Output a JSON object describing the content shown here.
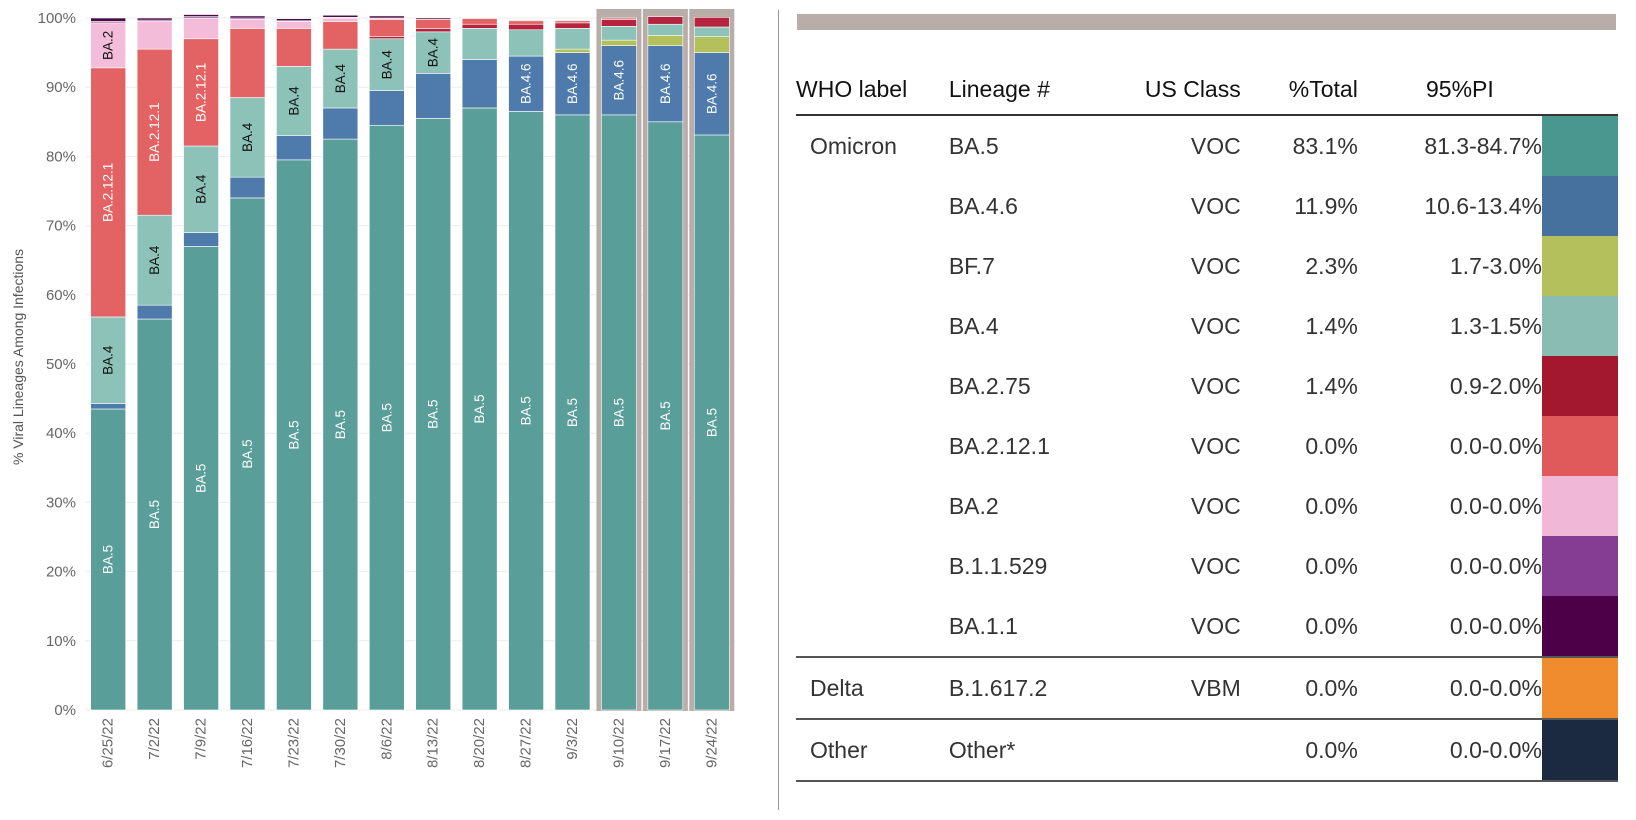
{
  "chart_data": {
    "type": "stacked-bar",
    "ylabel": "% Viral Lineages Among Infections",
    "ylim": [
      0,
      100
    ],
    "yticks": [
      "0%",
      "10%",
      "20%",
      "30%",
      "40%",
      "50%",
      "60%",
      "70%",
      "80%",
      "90%",
      "100%"
    ],
    "categories": [
      "6/25/22",
      "7/2/22",
      "7/9/22",
      "7/16/22",
      "7/23/22",
      "7/30/22",
      "8/6/22",
      "8/13/22",
      "8/20/22",
      "8/27/22",
      "9/3/22",
      "9/10/22",
      "9/17/22",
      "9/24/22"
    ],
    "nowcast_weeks": [
      "9/10/22",
      "9/17/22",
      "9/24/22"
    ],
    "series": [
      {
        "name": "BA.5",
        "color": "#5a9e9a",
        "values": [
          43.5,
          56.5,
          67,
          74,
          79.5,
          82.5,
          84.5,
          85.5,
          87,
          86.5,
          86,
          86,
          85,
          83.1
        ]
      },
      {
        "name": "BA.4.6",
        "color": "#4e7bab",
        "values": [
          0.8,
          2,
          2,
          3,
          3.5,
          4.5,
          5,
          6.5,
          7,
          8,
          9,
          10,
          11,
          11.9
        ]
      },
      {
        "name": "BF.7",
        "color": "#b3c05c",
        "values": [
          0,
          0,
          0,
          0,
          0,
          0,
          0,
          0,
          0,
          0,
          0.5,
          0.8,
          1.5,
          2.3
        ]
      },
      {
        "name": "BA.4",
        "color": "#8cc2b8",
        "values": [
          12.5,
          13,
          12.5,
          11.5,
          10,
          8.5,
          7.5,
          6,
          4.5,
          3.8,
          3,
          2,
          1.6,
          1.4
        ]
      },
      {
        "name": "BA.2.75",
        "color": "#b5233f",
        "values": [
          0,
          0,
          0,
          0,
          0,
          0,
          0.3,
          0.5,
          0.6,
          0.8,
          0.8,
          1,
          1.1,
          1.4
        ]
      },
      {
        "name": "BA.2.12.1",
        "color": "#e36364",
        "values": [
          36,
          24,
          15.5,
          10,
          5.5,
          4,
          2.5,
          1.3,
          0.8,
          0.5,
          0.3,
          0.2,
          0,
          0
        ]
      },
      {
        "name": "BA.2",
        "color": "#f3bcd9",
        "values": [
          6.5,
          4,
          3,
          1.3,
          1,
          0.5,
          0.2,
          0,
          0,
          0,
          0,
          0,
          0,
          0
        ]
      },
      {
        "name": "B.1.1.529",
        "color": "#8b4799",
        "values": [
          0.2,
          0.2,
          0.2,
          0.2,
          0.1,
          0.1,
          0,
          0,
          0,
          0,
          0,
          0,
          0,
          0
        ]
      },
      {
        "name": "BA.1.1",
        "color": "#4a0b45",
        "values": [
          0.5,
          0.3,
          0.3,
          0.3,
          0.3,
          0.3,
          0.3,
          0.2,
          0.1,
          0.1,
          0.1,
          0,
          0,
          0
        ]
      }
    ],
    "bar_labels": [
      {
        "bar": 0,
        "series": "BA.5",
        "text": "BA.5"
      },
      {
        "bar": 0,
        "series": "BA.4",
        "text": "BA.4"
      },
      {
        "bar": 0,
        "series": "BA.2.12.1",
        "text": "BA.2.12.1"
      },
      {
        "bar": 0,
        "series": "BA.2",
        "text": "BA.2"
      },
      {
        "bar": 1,
        "series": "BA.5",
        "text": "BA.5"
      },
      {
        "bar": 1,
        "series": "BA.4",
        "text": "BA.4"
      },
      {
        "bar": 1,
        "series": "BA.2.12.1",
        "text": "BA.2.12.1"
      },
      {
        "bar": 2,
        "series": "BA.5",
        "text": "BA.5"
      },
      {
        "bar": 2,
        "series": "BA.4",
        "text": "BA.4"
      },
      {
        "bar": 2,
        "series": "BA.2.12.1",
        "text": "BA.2.12.1"
      },
      {
        "bar": 3,
        "series": "BA.5",
        "text": "BA.5"
      },
      {
        "bar": 3,
        "series": "BA.4",
        "text": "BA.4"
      },
      {
        "bar": 4,
        "series": "BA.5",
        "text": "BA.5"
      },
      {
        "bar": 4,
        "series": "BA.4",
        "text": "BA.4"
      },
      {
        "bar": 5,
        "series": "BA.5",
        "text": "BA.5"
      },
      {
        "bar": 5,
        "series": "BA.4",
        "text": "BA.4"
      },
      {
        "bar": 6,
        "series": "BA.5",
        "text": "BA.5"
      },
      {
        "bar": 6,
        "series": "BA.4",
        "text": "BA.4"
      },
      {
        "bar": 7,
        "series": "BA.5",
        "text": "BA.5"
      },
      {
        "bar": 7,
        "series": "BA.4",
        "text": "BA.4"
      },
      {
        "bar": 8,
        "series": "BA.5",
        "text": "BA.5"
      },
      {
        "bar": 9,
        "series": "BA.5",
        "text": "BA.5"
      },
      {
        "bar": 9,
        "series": "BA.4.6",
        "text": "BA.4.6"
      },
      {
        "bar": 10,
        "series": "BA.5",
        "text": "BA.5"
      },
      {
        "bar": 10,
        "series": "BA.4.6",
        "text": "BA.4.6"
      },
      {
        "bar": 11,
        "series": "BA.5",
        "text": "BA.5"
      },
      {
        "bar": 11,
        "series": "BA.4.6",
        "text": "BA.4.6"
      },
      {
        "bar": 12,
        "series": "BA.5",
        "text": "BA.5"
      },
      {
        "bar": 12,
        "series": "BA.4.6",
        "text": "BA.4.6"
      },
      {
        "bar": 13,
        "series": "BA.5",
        "text": "BA.5"
      },
      {
        "bar": 13,
        "series": "BA.4.6",
        "text": "BA.4.6"
      }
    ]
  },
  "legend": {
    "headers": {
      "who": "WHO label",
      "lineage": "Lineage #",
      "us_class": "US Class",
      "total": "%Total",
      "pi": "95%PI"
    },
    "rows": [
      {
        "who": "Omicron",
        "lineage": "BA.5",
        "us_class": "VOC",
        "total": "83.1%",
        "pi": "81.3-84.7%",
        "color": "#4a9790"
      },
      {
        "who": "",
        "lineage": "BA.4.6",
        "us_class": "VOC",
        "total": "11.9%",
        "pi": "10.6-13.4%",
        "color": "#46719e"
      },
      {
        "who": "",
        "lineage": "BF.7",
        "us_class": "VOC",
        "total": "2.3%",
        "pi": "1.7-3.0%",
        "color": "#b3c05c"
      },
      {
        "who": "",
        "lineage": "BA.4",
        "us_class": "VOC",
        "total": "1.4%",
        "pi": "1.3-1.5%",
        "color": "#8abcb3"
      },
      {
        "who": "",
        "lineage": "BA.2.75",
        "us_class": "VOC",
        "total": "1.4%",
        "pi": "0.9-2.0%",
        "color": "#a3172f"
      },
      {
        "who": "",
        "lineage": "BA.2.12.1",
        "us_class": "VOC",
        "total": "0.0%",
        "pi": "0.0-0.0%",
        "color": "#e15a5b"
      },
      {
        "who": "",
        "lineage": "BA.2",
        "us_class": "VOC",
        "total": "0.0%",
        "pi": "0.0-0.0%",
        "color": "#f0b8d6"
      },
      {
        "who": "",
        "lineage": "B.1.1.529",
        "us_class": "VOC",
        "total": "0.0%",
        "pi": "0.0-0.0%",
        "color": "#853d94"
      },
      {
        "who": "",
        "lineage": "BA.1.1",
        "us_class": "VOC",
        "total": "0.0%",
        "pi": "0.0-0.0%",
        "color": "#4d0047"
      },
      {
        "who": "Delta",
        "lineage": "B.1.617.2",
        "us_class": "VBM",
        "total": "0.0%",
        "pi": "0.0-0.0%",
        "color": "#f08c2d"
      },
      {
        "who": "Other",
        "lineage": "Other*",
        "us_class": "",
        "total": "0.0%",
        "pi": "0.0-0.0%",
        "color": "#1b2a40"
      }
    ]
  }
}
